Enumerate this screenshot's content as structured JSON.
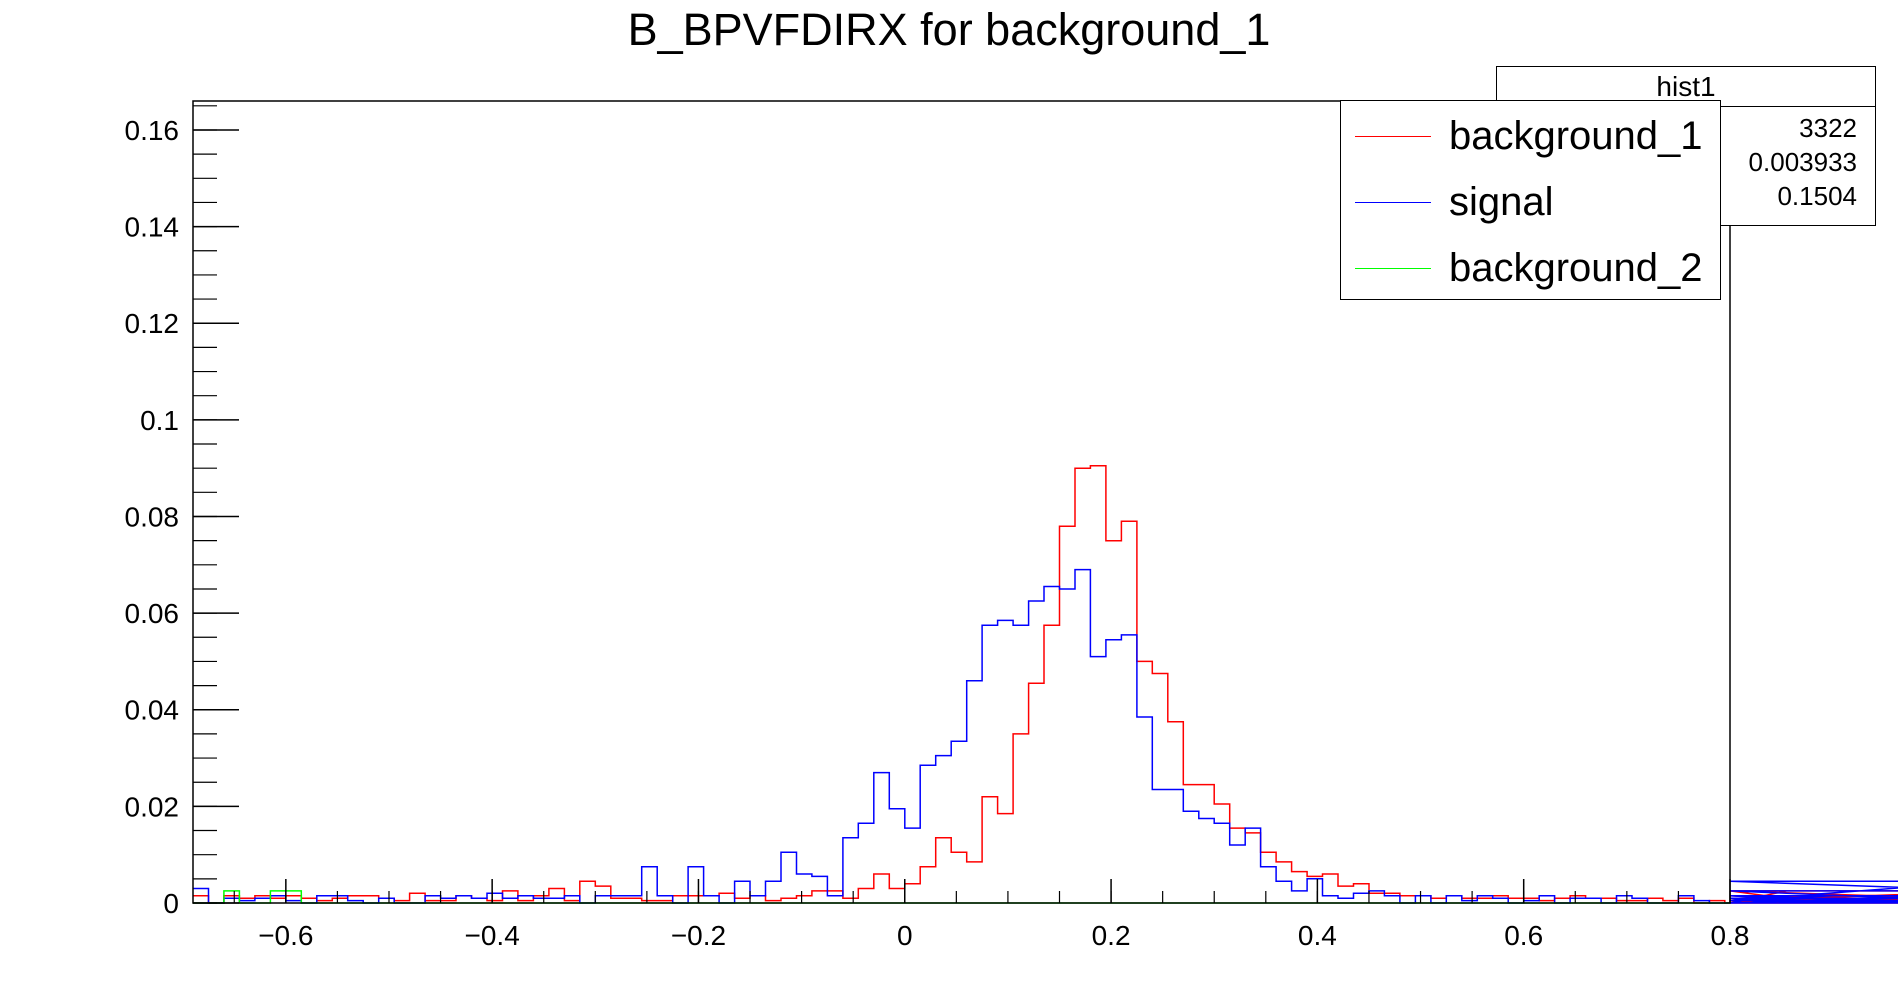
{
  "chart_data": {
    "type": "line",
    "title": "B_BPVFDIRX for background_1",
    "xlim": [
      -0.69,
      0.8
    ],
    "ylim": [
      0,
      0.166
    ],
    "x_ticks": [
      -0.6,
      -0.4,
      -0.2,
      0,
      0.2,
      0.4,
      0.6,
      0.8
    ],
    "x_tick_labels": [
      "−0.6",
      "−0.4",
      "−0.2",
      "0",
      "0.2",
      "0.4",
      "0.6",
      "0.8"
    ],
    "y_ticks": [
      0,
      0.02,
      0.04,
      0.06,
      0.08,
      0.1,
      0.12,
      0.14,
      0.16
    ],
    "y_tick_labels": [
      "0",
      "0.02",
      "0.04",
      "0.06",
      "0.08",
      "0.1",
      "0.12",
      "0.14",
      "0.16"
    ],
    "bin_edges_start": -0.69,
    "bin_width": 0.015,
    "legend_position": "top-right",
    "stats_box": {
      "title": "hist1",
      "values": [
        "3322",
        "0.003933",
        "0.1504"
      ]
    },
    "series": [
      {
        "name": "background_1",
        "color": "#ff0000",
        "values": [
          0.0015,
          0.0,
          0.0015,
          0.001,
          0.0015,
          0.001,
          0.0015,
          0.001,
          0.0005,
          0.001,
          0.0015,
          0.0015,
          0.001,
          0.0005,
          0.002,
          0.0005,
          0.0005,
          0.0015,
          0.001,
          0.0005,
          0.0025,
          0.0005,
          0.0015,
          0.003,
          0.0005,
          0.0045,
          0.0035,
          0.001,
          0.001,
          0.0005,
          0.0005,
          0.0015,
          0.0015,
          0.0015,
          0.002,
          0.001,
          0.0015,
          0.0005,
          0.001,
          0.0015,
          0.0025,
          0.0025,
          0.001,
          0.003,
          0.006,
          0.003,
          0.004,
          0.0075,
          0.0135,
          0.0105,
          0.0085,
          0.022,
          0.0185,
          0.035,
          0.0455,
          0.0575,
          0.078,
          0.09,
          0.0905,
          0.075,
          0.079,
          0.05,
          0.0475,
          0.0375,
          0.0245,
          0.0245,
          0.0205,
          0.0155,
          0.0145,
          0.0105,
          0.0085,
          0.0065,
          0.0055,
          0.006,
          0.0035,
          0.004,
          0.002,
          0.002,
          0.0015,
          0.0015,
          0.001,
          0.0015,
          0.001,
          0.001,
          0.0015,
          0.001,
          0.001,
          0.0005,
          0.001,
          0.0015,
          0.001,
          0.001,
          0.0005,
          0.0005,
          0.001,
          0.0005,
          0.001,
          0.0,
          0.0005,
          0.0,
          0.0005,
          0.0005,
          0.0,
          0.0025,
          0.0005,
          0.0015,
          0.0015,
          0.0005,
          0.0015,
          0.0,
          0.0005,
          0.0,
          0.0015,
          0.0,
          0.0005,
          0.001,
          0.0005,
          0.0025,
          0.0005,
          0.0005,
          0.0015,
          0.0,
          0.0005,
          0.0015,
          0.0015,
          0.0,
          0.0005,
          0.0005,
          0.0005,
          0.0005,
          0.001
        ]
      },
      {
        "name": "signal",
        "color": "#0000ff",
        "values": [
          0.003,
          0.0,
          0.001,
          0.0005,
          0.001,
          0.0015,
          0.0005,
          0.0,
          0.0015,
          0.0015,
          0.0005,
          0.0,
          0.001,
          0.0,
          0.0,
          0.0015,
          0.001,
          0.0015,
          0.001,
          0.002,
          0.001,
          0.0015,
          0.001,
          0.001,
          0.0015,
          0.0,
          0.0015,
          0.0015,
          0.0015,
          0.0075,
          0.0015,
          0.0,
          0.0075,
          0.0015,
          0.0,
          0.0045,
          0.0015,
          0.0045,
          0.0105,
          0.006,
          0.0055,
          0.0015,
          0.0135,
          0.0165,
          0.027,
          0.0195,
          0.0155,
          0.0285,
          0.0305,
          0.0335,
          0.046,
          0.0575,
          0.0585,
          0.0575,
          0.0625,
          0.0655,
          0.065,
          0.069,
          0.051,
          0.0545,
          0.0555,
          0.0385,
          0.0235,
          0.0235,
          0.019,
          0.0175,
          0.0165,
          0.012,
          0.0155,
          0.0075,
          0.0045,
          0.0025,
          0.005,
          0.0015,
          0.001,
          0.002,
          0.0025,
          0.0015,
          0.0,
          0.0015,
          0.0,
          0.0015,
          0.0005,
          0.0015,
          0.001,
          0.0,
          0.0005,
          0.0015,
          0.0,
          0.001,
          0.001,
          0.0,
          0.0015,
          0.001,
          0.0,
          0.0,
          0.0015,
          0.0005,
          0.0,
          0.0,
          0.0,
          0.001,
          0.0,
          0.0,
          0.0,
          0.0005,
          0.0015,
          0.0,
          0.0,
          0.0,
          0.0,
          0.001,
          0.0,
          0.0015,
          0.0,
          0.0005,
          0.0045,
          0.0025,
          0.0,
          0.0,
          0.0,
          0.0,
          0.0,
          0.0,
          0.0,
          0.0,
          0.0,
          0.0,
          0.0,
          0.0
        ]
      },
      {
        "name": "background_2",
        "color": "#00ff00",
        "values": [
          0.0,
          0.0,
          0.0025,
          0.0,
          0.0,
          0.0025,
          0.0025,
          0.0,
          0.0,
          0.0,
          0.0,
          0.0,
          0.0,
          0.0,
          0.0,
          0.0,
          0.0,
          0.0,
          0.0,
          0.0,
          0.0,
          0.0,
          0.0,
          0.0,
          0.0,
          0.0,
          0.0,
          0.0,
          0.0,
          0.0,
          0.0,
          0.0,
          0.0,
          0.0,
          0.0,
          0.0,
          0.0,
          0.0,
          0.0,
          0.0,
          0.0,
          0.0,
          0.0,
          0.0,
          0.0,
          0.0,
          0.0,
          0.0,
          0.0,
          0.0,
          0.0,
          0.0,
          0.0,
          0.0,
          0.0,
          0.0,
          0.0,
          0.0,
          0.0,
          0.0,
          0.0,
          0.0,
          0.0,
          0.0,
          0.0,
          0.0,
          0.0,
          0.0,
          0.0,
          0.0,
          0.0,
          0.0,
          0.0,
          0.0,
          0.0,
          0.0,
          0.0,
          0.0,
          0.0,
          0.0,
          0.0,
          0.0,
          0.0,
          0.0,
          0.0,
          0.0,
          0.0,
          0.0,
          0.0,
          0.0,
          0.0,
          0.0,
          0.0,
          0.0,
          0.0,
          0.0,
          0.0,
          0.0,
          0.0,
          0.0
        ]
      }
    ]
  }
}
